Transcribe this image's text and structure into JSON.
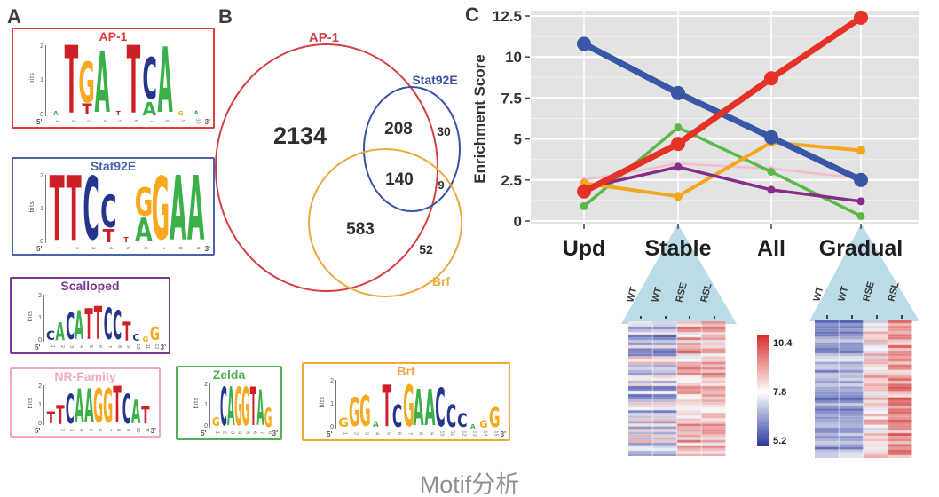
{
  "panels": {
    "a_label": "A",
    "b_label": "B",
    "c_label": "C"
  },
  "caption": "Motif分析",
  "logo_axis": {
    "bits_label": "bits",
    "yticks": [
      "2",
      "1",
      "0"
    ],
    "five_prime": "5'",
    "three_prime": "3'"
  },
  "nucleotide_colors": {
    "A": "#3bb04a",
    "C": "#26358c",
    "G": "#f6a81e",
    "T": "#cc2026"
  },
  "motifs": [
    {
      "name": "AP-1",
      "color": "#e23c3c",
      "stacks": [
        [
          {
            "ch": "A",
            "h": 0.07
          }
        ],
        [
          {
            "ch": "T",
            "h": 1.0
          }
        ],
        [
          {
            "ch": "G",
            "h": 0.6
          },
          {
            "ch": "T",
            "h": 0.16
          }
        ],
        [
          {
            "ch": "A",
            "h": 0.9
          }
        ],
        [
          {
            "ch": "T",
            "h": 0.07
          }
        ],
        [
          {
            "ch": "T",
            "h": 1.0
          }
        ],
        [
          {
            "ch": "C",
            "h": 0.62
          },
          {
            "ch": "A",
            "h": 0.2
          }
        ],
        [
          {
            "ch": "A",
            "h": 0.97
          }
        ],
        [
          {
            "ch": "G",
            "h": 0.07
          }
        ],
        [
          {
            "ch": "A",
            "h": 0.06
          }
        ]
      ],
      "positions": [
        "1",
        "2",
        "3",
        "4",
        "5",
        "6",
        "7",
        "8",
        "9",
        "10"
      ]
    },
    {
      "name": "Stat92E",
      "color": "#4a62ac",
      "stacks": [
        [
          {
            "ch": "T",
            "h": 1.0
          }
        ],
        [
          {
            "ch": "T",
            "h": 1.0
          }
        ],
        [
          {
            "ch": "C",
            "h": 0.97
          }
        ],
        [
          {
            "ch": "C",
            "h": 0.5
          },
          {
            "ch": "T",
            "h": 0.2
          }
        ],
        [
          {
            "ch": "T",
            "h": 0.08
          }
        ],
        [
          {
            "ch": "G",
            "h": 0.44
          },
          {
            "ch": "A",
            "h": 0.36
          }
        ],
        [
          {
            "ch": "G",
            "h": 0.97
          }
        ],
        [
          {
            "ch": "A",
            "h": 1.0
          }
        ],
        [
          {
            "ch": "A",
            "h": 1.0
          }
        ]
      ],
      "positions": [
        "1",
        "2",
        "3",
        "4",
        "5",
        "6",
        "7",
        "8",
        "9"
      ]
    },
    {
      "name": "Scalloped",
      "color": "#7a3794",
      "stacks": [
        [
          {
            "ch": "C",
            "h": 0.2
          }
        ],
        [
          {
            "ch": "A",
            "h": 0.4
          }
        ],
        [
          {
            "ch": "C",
            "h": 0.6
          }
        ],
        [
          {
            "ch": "A",
            "h": 0.64
          }
        ],
        [
          {
            "ch": "T",
            "h": 0.68
          }
        ],
        [
          {
            "ch": "T",
            "h": 0.74
          }
        ],
        [
          {
            "ch": "C",
            "h": 0.7
          }
        ],
        [
          {
            "ch": "C",
            "h": 0.64
          }
        ],
        [
          {
            "ch": "T",
            "h": 0.42
          }
        ],
        [
          {
            "ch": "C",
            "h": 0.16
          }
        ],
        [
          {
            "ch": "G",
            "h": 0.12
          }
        ],
        [
          {
            "ch": "G",
            "h": 0.3
          }
        ]
      ],
      "positions": [
        "1",
        "2",
        "3",
        "4",
        "5",
        "6",
        "7",
        "8",
        "9",
        "10",
        "11",
        "12"
      ]
    },
    {
      "name": "NR-Family",
      "color": "#f2a9bf",
      "stacks": [
        [
          {
            "ch": "T",
            "h": 0.32
          }
        ],
        [
          {
            "ch": "T",
            "h": 0.5
          }
        ],
        [
          {
            "ch": "C",
            "h": 0.78
          }
        ],
        [
          {
            "ch": "A",
            "h": 0.9
          }
        ],
        [
          {
            "ch": "A",
            "h": 0.9
          }
        ],
        [
          {
            "ch": "G",
            "h": 0.9
          }
        ],
        [
          {
            "ch": "G",
            "h": 0.9
          }
        ],
        [
          {
            "ch": "T",
            "h": 0.95
          }
        ],
        [
          {
            "ch": "C",
            "h": 0.78
          }
        ],
        [
          {
            "ch": "A",
            "h": 0.62
          }
        ],
        [
          {
            "ch": "T",
            "h": 0.45
          }
        ]
      ],
      "positions": [
        "1",
        "2",
        "3",
        "4",
        "5",
        "6",
        "7",
        "8",
        "9",
        "10",
        "11"
      ]
    },
    {
      "name": "Zelda",
      "color": "#52b153",
      "stacks": [
        [
          {
            "ch": "G",
            "h": 0.2
          }
        ],
        [
          {
            "ch": "C",
            "h": 0.92
          }
        ],
        [
          {
            "ch": "A",
            "h": 0.92
          }
        ],
        [
          {
            "ch": "G",
            "h": 0.92
          }
        ],
        [
          {
            "ch": "G",
            "h": 0.92
          }
        ],
        [
          {
            "ch": "T",
            "h": 0.92
          }
        ],
        [
          {
            "ch": "A",
            "h": 0.85
          }
        ],
        [
          {
            "ch": "G",
            "h": 0.45
          }
        ]
      ],
      "positions": [
        "1",
        "2",
        "3",
        "4",
        "5",
        "6",
        "7",
        "8"
      ]
    },
    {
      "name": "Brf",
      "color": "#f0a83c",
      "stacks": [
        [
          {
            "ch": "G",
            "h": 0.2
          }
        ],
        [
          {
            "ch": "G",
            "h": 0.62
          }
        ],
        [
          {
            "ch": "G",
            "h": 0.66
          }
        ],
        [
          {
            "ch": "A",
            "h": 0.12
          }
        ],
        [
          {
            "ch": "T",
            "h": 0.9
          }
        ],
        [
          {
            "ch": "C",
            "h": 0.48
          }
        ],
        [
          {
            "ch": "G",
            "h": 0.9
          }
        ],
        [
          {
            "ch": "A",
            "h": 0.78
          }
        ],
        [
          {
            "ch": "A",
            "h": 0.78
          }
        ],
        [
          {
            "ch": "C",
            "h": 0.84
          }
        ],
        [
          {
            "ch": "C",
            "h": 0.48
          }
        ],
        [
          {
            "ch": "C",
            "h": 0.3
          }
        ],
        [
          {
            "ch": "A",
            "h": 0.1
          }
        ],
        [
          {
            "ch": "G",
            "h": 0.16
          }
        ],
        [
          {
            "ch": "G",
            "h": 0.42
          }
        ]
      ],
      "positions": [
        "1",
        "2",
        "3",
        "4",
        "5",
        "6",
        "7",
        "8",
        "9",
        "10",
        "11",
        "12",
        "13",
        "14",
        "15"
      ]
    }
  ],
  "venn": {
    "labels": [
      {
        "text": "AP-1",
        "color": "#d23f44"
      },
      {
        "text": "Stat92E",
        "color": "#3b51a3"
      },
      {
        "text": "Brf",
        "color": "#e9a93f"
      }
    ],
    "counts": {
      "ap1_only": "2134",
      "ap1_stat92e": "208",
      "stat92e_only": "30",
      "triple": "140",
      "stat92e_brf": "9",
      "ap1_brf": "583",
      "brf_only": "52"
    }
  },
  "chart_data": {
    "type": "line",
    "ylabel": "Enrichment Score",
    "x_categories": [
      "Upd",
      "Stable",
      "All",
      "Gradual"
    ],
    "yticks": [
      "0",
      "2.5",
      "5",
      "7.5",
      "10",
      "12.5"
    ],
    "ylim": [
      0,
      12.5
    ],
    "grid": true,
    "legend": "none",
    "series": [
      {
        "name": "pink",
        "color": "#f5bcd1",
        "width": 2.5,
        "marker": 3,
        "values": [
          2.5,
          3.5,
          3.2,
          2.6
        ]
      },
      {
        "name": "green",
        "color": "#5cb849",
        "width": 3.5,
        "marker": 4.5,
        "values": [
          0.9,
          5.7,
          3.0,
          0.3
        ]
      },
      {
        "name": "orange",
        "color": "#f2a71f",
        "width": 4,
        "marker": 5,
        "values": [
          2.3,
          1.5,
          4.8,
          4.3
        ]
      },
      {
        "name": "purple",
        "color": "#862d86",
        "width": 3.5,
        "marker": 4.5,
        "values": [
          2.0,
          3.3,
          1.9,
          1.2
        ]
      },
      {
        "name": "blue",
        "color": "#3a56a7",
        "width": 7,
        "marker": 8,
        "values": [
          10.8,
          7.8,
          5.1,
          2.5
        ]
      },
      {
        "name": "red",
        "color": "#e53127",
        "width": 7,
        "marker": 8,
        "values": [
          1.8,
          4.7,
          8.7,
          12.4
        ]
      }
    ]
  },
  "heatmaps": {
    "columns": [
      "WT",
      "WT",
      "RSE",
      "RSL"
    ],
    "colorbar": {
      "max": "10.4",
      "mid": "7.8",
      "min": "5.2"
    },
    "left_anchor": "Stable",
    "right_anchor": "Gradual"
  }
}
